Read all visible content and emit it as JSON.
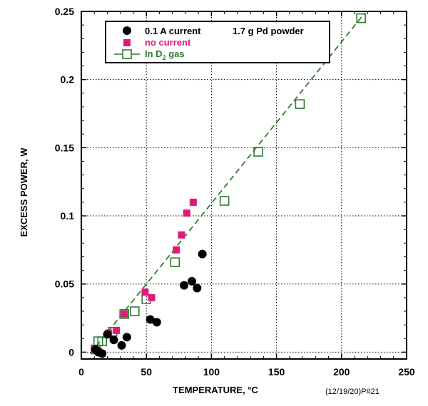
{
  "chart_data": {
    "type": "scatter",
    "xlabel": "TEMPERATURE, °C",
    "ylabel": "EXCESS POWER, W",
    "xlim": [
      0,
      250
    ],
    "ylim": [
      -0.005,
      0.25
    ],
    "x_ticks": [
      "0",
      "50",
      "100",
      "150",
      "200",
      "250"
    ],
    "y_ticks": [
      "0",
      "0.05",
      "0.1",
      "0.15",
      "0.2",
      "0.25"
    ],
    "x_tick_values": [
      0,
      50,
      100,
      150,
      200,
      250
    ],
    "y_tick_values": [
      0,
      0.05,
      0.1,
      0.15,
      0.2,
      0.25
    ],
    "grid": "dotted",
    "legend_position": "top-left",
    "annotation": "1.7 g Pd powder",
    "footer": "(12/19/20)P#21",
    "series": [
      {
        "name": "0.1 A current",
        "marker": "filled-circle",
        "color": "#000000",
        "points": [
          [
            11,
            0.002
          ],
          [
            13,
            0.0
          ],
          [
            16,
            -0.001
          ],
          [
            20,
            0.013
          ],
          [
            25,
            0.009
          ],
          [
            31,
            0.005
          ],
          [
            35,
            0.011
          ],
          [
            53,
            0.024
          ],
          [
            58,
            0.022
          ],
          [
            79,
            0.049
          ],
          [
            85,
            0.052
          ],
          [
            89,
            0.047
          ],
          [
            93,
            0.072
          ]
        ]
      },
      {
        "name": "no current",
        "marker": "filled-square",
        "color": "#e2187a",
        "points": [
          [
            10,
            0.002
          ],
          [
            13,
            0.001
          ],
          [
            21,
            0.014
          ],
          [
            27,
            0.016
          ],
          [
            33,
            0.028
          ],
          [
            49,
            0.044
          ],
          [
            54,
            0.04
          ],
          [
            73,
            0.075
          ],
          [
            77,
            0.086
          ],
          [
            81,
            0.102
          ],
          [
            86,
            0.11
          ]
        ]
      },
      {
        "name": "In D2 gas",
        "legend_label_main": "In D",
        "legend_label_sub": "2",
        "legend_label_tail": " gas",
        "marker": "open-square",
        "color": "#2e7d32",
        "line": "dashed",
        "points": [
          [
            11,
            0.002
          ],
          [
            13,
            0.008
          ],
          [
            16,
            0.008
          ],
          [
            24,
            0.015
          ],
          [
            33,
            0.028
          ],
          [
            41,
            0.03
          ],
          [
            50,
            0.039
          ],
          [
            72,
            0.066
          ],
          [
            110,
            0.111
          ],
          [
            136,
            0.147
          ],
          [
            168,
            0.182
          ],
          [
            215,
            0.245
          ]
        ]
      }
    ]
  }
}
